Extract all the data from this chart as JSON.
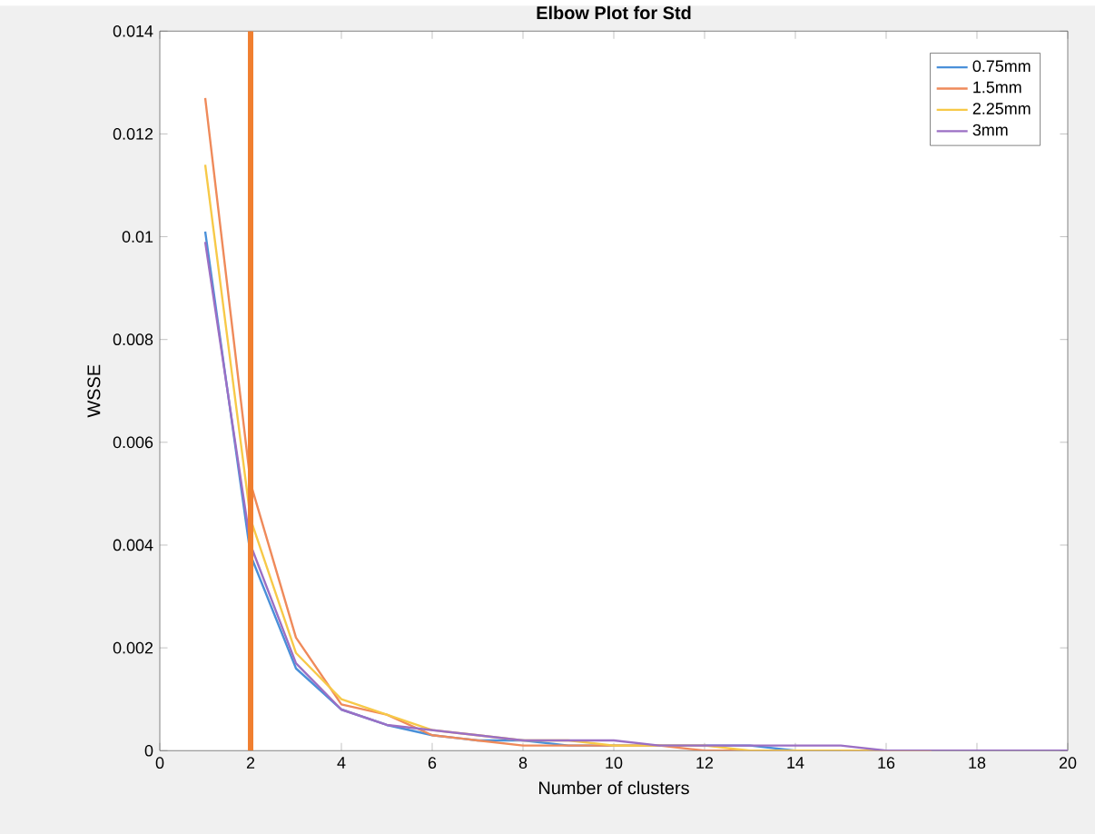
{
  "chart_data": {
    "type": "line",
    "title": "Elbow Plot for Std",
    "xlabel": "Number of clusters",
    "ylabel": "WSSE",
    "x": [
      1,
      2,
      3,
      4,
      5,
      6,
      7,
      8,
      9,
      10,
      11,
      12,
      13,
      14,
      15,
      16,
      17,
      18,
      19,
      20
    ],
    "series": [
      {
        "name": "0.75mm",
        "color": "#4a90d9",
        "values": [
          0.0101,
          0.0038,
          0.0016,
          0.0008,
          0.0005,
          0.0003,
          0.0002,
          0.0002,
          0.0001,
          0.0001,
          0.0001,
          0.0001,
          0.0001,
          0.0,
          0.0,
          null,
          null,
          null,
          null,
          null
        ]
      },
      {
        "name": "1.5mm",
        "color": "#ef8a5a",
        "values": [
          0.0127,
          0.0052,
          0.0022,
          0.0009,
          0.0007,
          0.0003,
          0.0002,
          0.0001,
          0.0001,
          0.0001,
          0.0001,
          0.0,
          0.0,
          0.0,
          0.0,
          0.0,
          0.0,
          null,
          null,
          null
        ]
      },
      {
        "name": "2.25mm",
        "color": "#f7c948",
        "values": [
          0.0114,
          0.0045,
          0.0019,
          0.001,
          0.0007,
          0.0004,
          0.0003,
          0.0002,
          0.0002,
          0.0001,
          0.0001,
          0.0001,
          0.0,
          0.0,
          0.0,
          0.0,
          0.0,
          null,
          null,
          null
        ]
      },
      {
        "name": "3mm",
        "color": "#9b6fc4",
        "values": [
          0.0099,
          0.004,
          0.0017,
          0.0008,
          0.0005,
          0.0004,
          0.0003,
          0.0002,
          0.0002,
          0.0002,
          0.0001,
          0.0001,
          0.0001,
          0.0001,
          0.0001,
          0.0,
          0.0,
          0.0,
          0.0,
          0.0
        ]
      }
    ],
    "ref_lines": [
      {
        "axis": "x",
        "value": 2,
        "color": "#f07f30"
      }
    ],
    "xlim": [
      0,
      20
    ],
    "ylim": [
      0,
      0.014
    ],
    "xticks": [
      0,
      2,
      4,
      6,
      8,
      10,
      12,
      14,
      16,
      18,
      20
    ],
    "yticks": [
      0,
      0.002,
      0.004,
      0.006,
      0.008,
      0.01,
      0.012,
      0.014
    ],
    "grid": false,
    "legend": "top right",
    "marker": "none",
    "line_style": "solid"
  }
}
